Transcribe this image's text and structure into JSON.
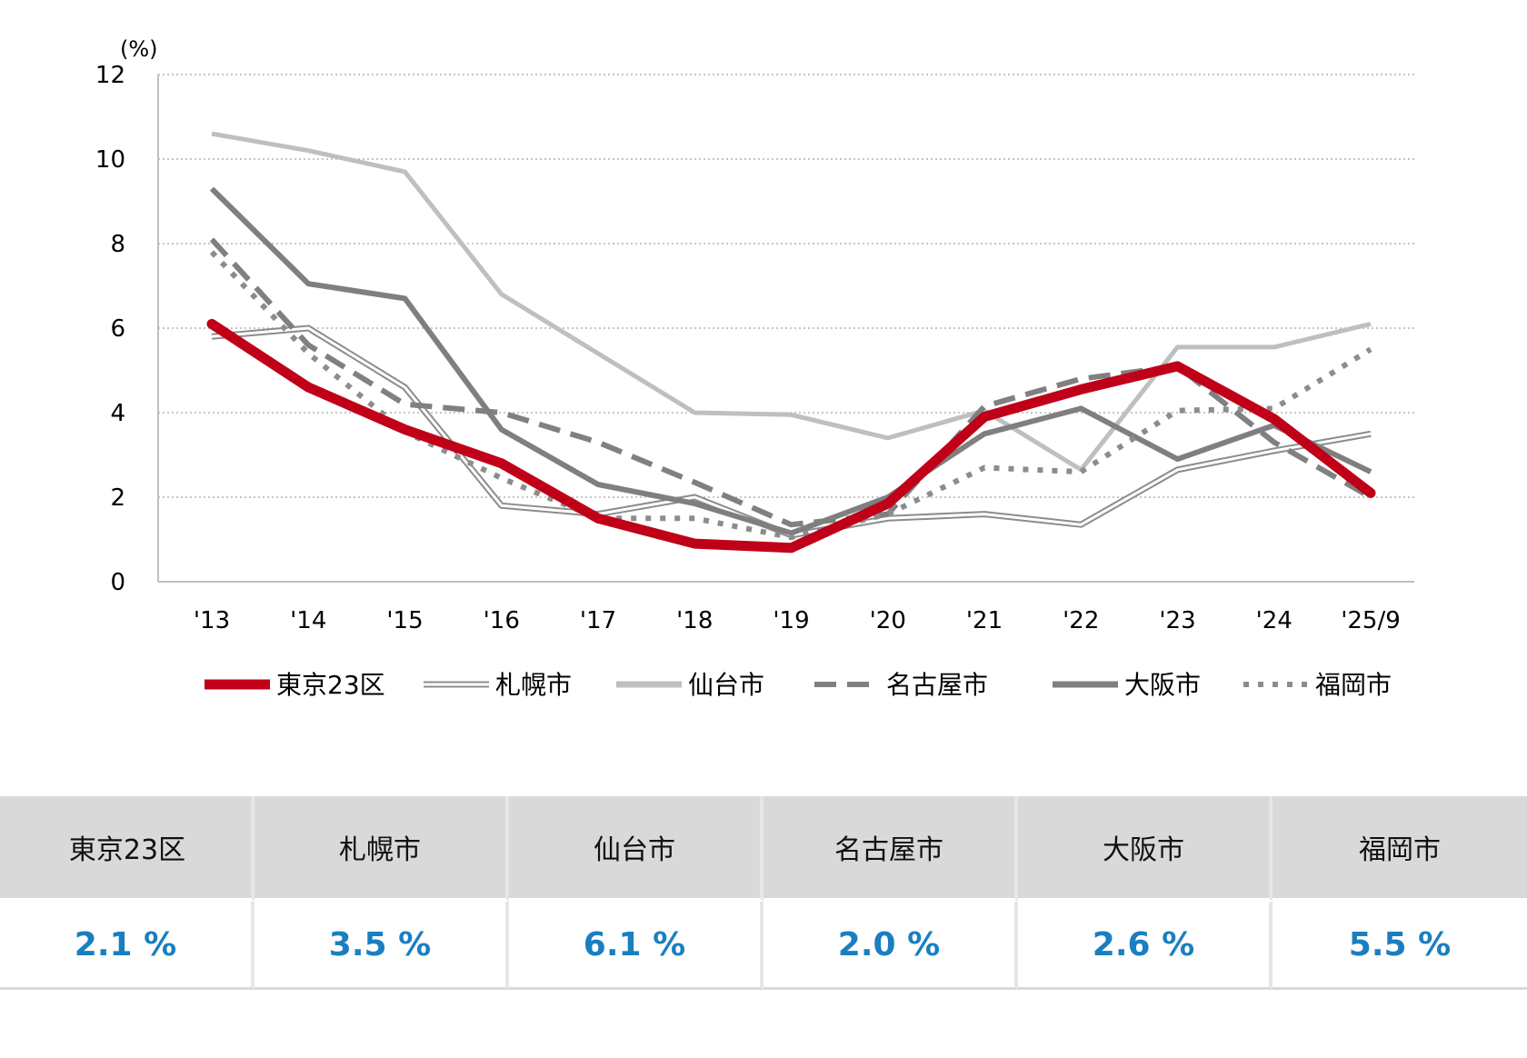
{
  "chart_data": {
    "type": "line",
    "unit_label": "(%)",
    "categories": [
      "'13",
      "'14",
      "'15",
      "'16",
      "'17",
      "'18",
      "'19",
      "'20",
      "'21",
      "'22",
      "'23",
      "'24",
      "'25/9"
    ],
    "ylim": [
      0,
      12
    ],
    "yticks": [
      "0",
      "2",
      "4",
      "6",
      "8",
      "10",
      "12"
    ],
    "grid": "horizontal dotted",
    "legend_position": "bottom",
    "series": [
      {
        "name": "札幌市",
        "color": "#8c8c8c",
        "style": "double",
        "values": [
          5.8,
          6.0,
          4.6,
          1.8,
          1.6,
          2.0,
          1.1,
          1.5,
          1.6,
          1.35,
          2.65,
          3.1,
          3.5
        ]
      },
      {
        "name": "仙台市",
        "color": "#bfbfbf",
        "style": "solid",
        "values": [
          10.6,
          10.2,
          9.7,
          6.8,
          5.4,
          4.0,
          3.95,
          3.4,
          4.05,
          2.65,
          5.55,
          5.55,
          6.1
        ]
      },
      {
        "name": "名古屋市",
        "color": "#808080",
        "style": "dashed",
        "values": [
          8.1,
          5.6,
          4.2,
          4.0,
          3.3,
          2.35,
          1.35,
          1.6,
          4.15,
          4.8,
          5.1,
          3.3,
          2.0
        ]
      },
      {
        "name": "大阪市",
        "color": "#7f7f7f",
        "style": "solid",
        "values": [
          9.3,
          7.05,
          6.7,
          3.6,
          2.3,
          1.85,
          1.15,
          2.0,
          3.5,
          4.1,
          2.9,
          3.7,
          2.6
        ]
      },
      {
        "name": "福岡市",
        "color": "#8c8c8c",
        "style": "dotted",
        "values": [
          7.8,
          5.4,
          3.55,
          2.45,
          1.5,
          1.5,
          1.05,
          1.6,
          2.7,
          2.6,
          4.05,
          4.1,
          5.5
        ]
      },
      {
        "name": "東京23区",
        "color": "#c00018",
        "style": "bold",
        "values": [
          6.1,
          4.6,
          3.6,
          2.8,
          1.5,
          0.9,
          0.8,
          1.85,
          3.9,
          4.55,
          5.1,
          3.85,
          2.1
        ]
      }
    ],
    "legend_order": [
      "東京23区",
      "札幌市",
      "仙台市",
      "名古屋市",
      "大阪市",
      "福岡市"
    ]
  },
  "summary_table": {
    "headers": [
      "東京23区",
      "札幌市",
      "仙台市",
      "名古屋市",
      "大阪市",
      "福岡市"
    ],
    "values": [
      "2.1 %",
      "3.5 %",
      "6.1 %",
      "2.0 %",
      "2.6 %",
      "5.5 %"
    ]
  }
}
